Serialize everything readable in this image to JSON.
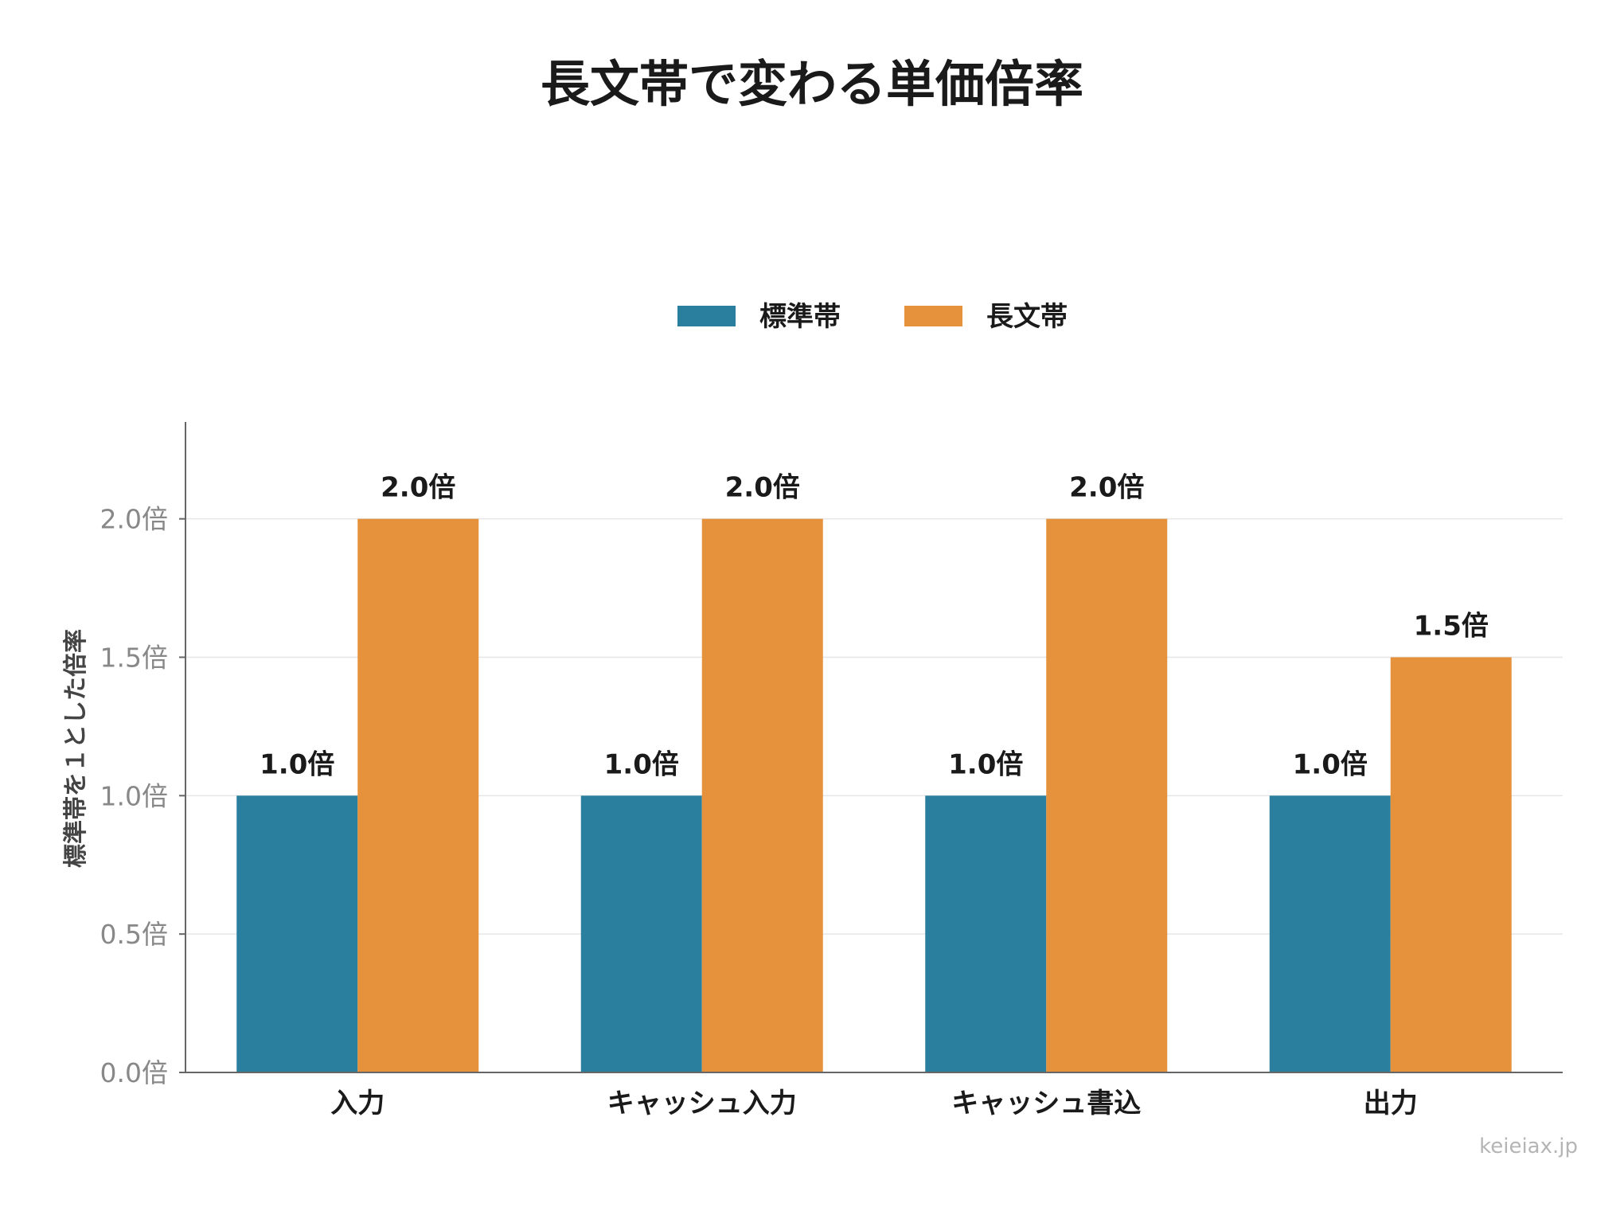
{
  "chart_data": {
    "type": "bar",
    "title": "長文帯で変わる単価倍率",
    "ylabel": "標準帯を１とした倍率",
    "xlabel": "",
    "categories": [
      "入力",
      "キャッシュ入力",
      "キャッシュ書込",
      "出力"
    ],
    "series": [
      {
        "name": "標準帯",
        "color": "#2b7f9e",
        "values": [
          1.0,
          1.0,
          1.0,
          1.0
        ],
        "labels": [
          "1.0倍",
          "1.0倍",
          "1.0倍",
          "1.0倍"
        ]
      },
      {
        "name": "長文帯",
        "color": "#e6913b",
        "values": [
          2.0,
          2.0,
          2.0,
          1.5
        ],
        "labels": [
          "2.0倍",
          "2.0倍",
          "2.0倍",
          "1.5倍"
        ]
      }
    ],
    "ylim": [
      0,
      2.35
    ],
    "yticks": [
      0.0,
      0.5,
      1.0,
      1.5,
      2.0
    ],
    "ytick_labels": [
      "0.0倍",
      "0.5倍",
      "1.0倍",
      "1.5倍",
      "2.0倍"
    ],
    "grid": true,
    "legend_position": "top-center"
  },
  "watermark": "keieiax.jp"
}
